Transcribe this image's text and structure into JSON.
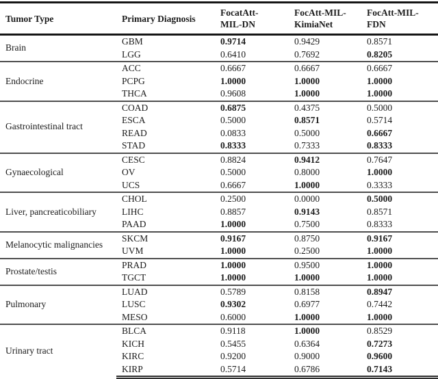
{
  "header": {
    "col1": "Tumor Type",
    "col2": "Primary Diagnosis",
    "col3_line1": "FocatAtt-",
    "col3_line2": "MIL-DN",
    "col4_line1": "FocAtt-MIL-",
    "col4_line2": "KimiaNet",
    "col5_line1": "FocAtt-MIL-",
    "col5_line2": "FDN"
  },
  "groups": [
    {
      "tumor_type": "Brain",
      "rows": [
        {
          "diagnosis": "GBM",
          "values": [
            "0.9714",
            "0.9429",
            "0.8571"
          ],
          "bold": [
            true,
            false,
            false
          ]
        },
        {
          "diagnosis": "LGG",
          "values": [
            "0.6410",
            "0.7692",
            "0.8205"
          ],
          "bold": [
            false,
            false,
            true
          ]
        }
      ]
    },
    {
      "tumor_type": "Endocrine",
      "rows": [
        {
          "diagnosis": "ACC",
          "values": [
            "0.6667",
            "0.6667",
            "0.6667"
          ],
          "bold": [
            false,
            false,
            false
          ]
        },
        {
          "diagnosis": "PCPG",
          "values": [
            "1.0000",
            "1.0000",
            "1.0000"
          ],
          "bold": [
            true,
            true,
            true
          ]
        },
        {
          "diagnosis": "THCA",
          "values": [
            "0.9608",
            "1.0000",
            "1.0000"
          ],
          "bold": [
            false,
            true,
            true
          ]
        }
      ]
    },
    {
      "tumor_type": "Gastrointestinal tract",
      "rows": [
        {
          "diagnosis": "COAD",
          "values": [
            "0.6875",
            "0.4375",
            "0.5000"
          ],
          "bold": [
            true,
            false,
            false
          ]
        },
        {
          "diagnosis": "ESCA",
          "values": [
            "0.5000",
            "0.8571",
            "0.5714"
          ],
          "bold": [
            false,
            true,
            false
          ]
        },
        {
          "diagnosis": "READ",
          "values": [
            "0.0833",
            "0.5000",
            "0.6667"
          ],
          "bold": [
            false,
            false,
            true
          ]
        },
        {
          "diagnosis": "STAD",
          "values": [
            "0.8333",
            "0.7333",
            "0.8333"
          ],
          "bold": [
            true,
            false,
            true
          ]
        }
      ]
    },
    {
      "tumor_type": "Gynaecological",
      "rows": [
        {
          "diagnosis": "CESC",
          "values": [
            "0.8824",
            "0.9412",
            "0.7647"
          ],
          "bold": [
            false,
            true,
            false
          ]
        },
        {
          "diagnosis": "OV",
          "values": [
            "0.5000",
            "0.8000",
            "1.0000"
          ],
          "bold": [
            false,
            false,
            true
          ]
        },
        {
          "diagnosis": "UCS",
          "values": [
            "0.6667",
            "1.0000",
            "0.3333"
          ],
          "bold": [
            false,
            true,
            false
          ]
        }
      ]
    },
    {
      "tumor_type": "Liver, pancreaticobiliary",
      "rows": [
        {
          "diagnosis": "CHOL",
          "values": [
            "0.2500",
            "0.0000",
            "0.5000"
          ],
          "bold": [
            false,
            false,
            true
          ]
        },
        {
          "diagnosis": "LIHC",
          "values": [
            "0.8857",
            "0.9143",
            "0.8571"
          ],
          "bold": [
            false,
            true,
            false
          ]
        },
        {
          "diagnosis": "PAAD",
          "values": [
            "1.0000",
            "0.7500",
            "0.8333"
          ],
          "bold": [
            true,
            false,
            false
          ]
        }
      ]
    },
    {
      "tumor_type": "Melanocytic malignancies",
      "rows": [
        {
          "diagnosis": "SKCM",
          "values": [
            "0.9167",
            "0.8750",
            "0.9167"
          ],
          "bold": [
            true,
            false,
            true
          ]
        },
        {
          "diagnosis": "UVM",
          "values": [
            "1.0000",
            "0.2500",
            "1.0000"
          ],
          "bold": [
            true,
            false,
            true
          ]
        }
      ]
    },
    {
      "tumor_type": "Prostate/testis",
      "rows": [
        {
          "diagnosis": "PRAD",
          "values": [
            "1.0000",
            "0.9500",
            "1.0000"
          ],
          "bold": [
            true,
            false,
            true
          ]
        },
        {
          "diagnosis": "TGCT",
          "values": [
            "1.0000",
            "1.0000",
            "1.0000"
          ],
          "bold": [
            true,
            true,
            true
          ]
        }
      ]
    },
    {
      "tumor_type": "Pulmonary",
      "rows": [
        {
          "diagnosis": "LUAD",
          "values": [
            "0.5789",
            "0.8158",
            "0.8947"
          ],
          "bold": [
            false,
            false,
            true
          ]
        },
        {
          "diagnosis": "LUSC",
          "values": [
            "0.9302",
            "0.6977",
            "0.7442"
          ],
          "bold": [
            true,
            false,
            false
          ]
        },
        {
          "diagnosis": "MESO",
          "values": [
            "0.6000",
            "1.0000",
            "1.0000"
          ],
          "bold": [
            false,
            true,
            true
          ]
        }
      ]
    },
    {
      "tumor_type": "Urinary tract",
      "rows": [
        {
          "diagnosis": "BLCA",
          "values": [
            "0.9118",
            "1.0000",
            "0.8529"
          ],
          "bold": [
            false,
            true,
            false
          ]
        },
        {
          "diagnosis": "KICH",
          "values": [
            "0.5455",
            "0.6364",
            "0.7273"
          ],
          "bold": [
            false,
            false,
            true
          ]
        },
        {
          "diagnosis": "KIRC",
          "values": [
            "0.9200",
            "0.9000",
            "0.9600"
          ],
          "bold": [
            false,
            false,
            true
          ]
        },
        {
          "diagnosis": "KIRP",
          "values": [
            "0.5714",
            "0.6786",
            "0.7143"
          ],
          "bold": [
            false,
            false,
            true
          ]
        }
      ]
    }
  ]
}
